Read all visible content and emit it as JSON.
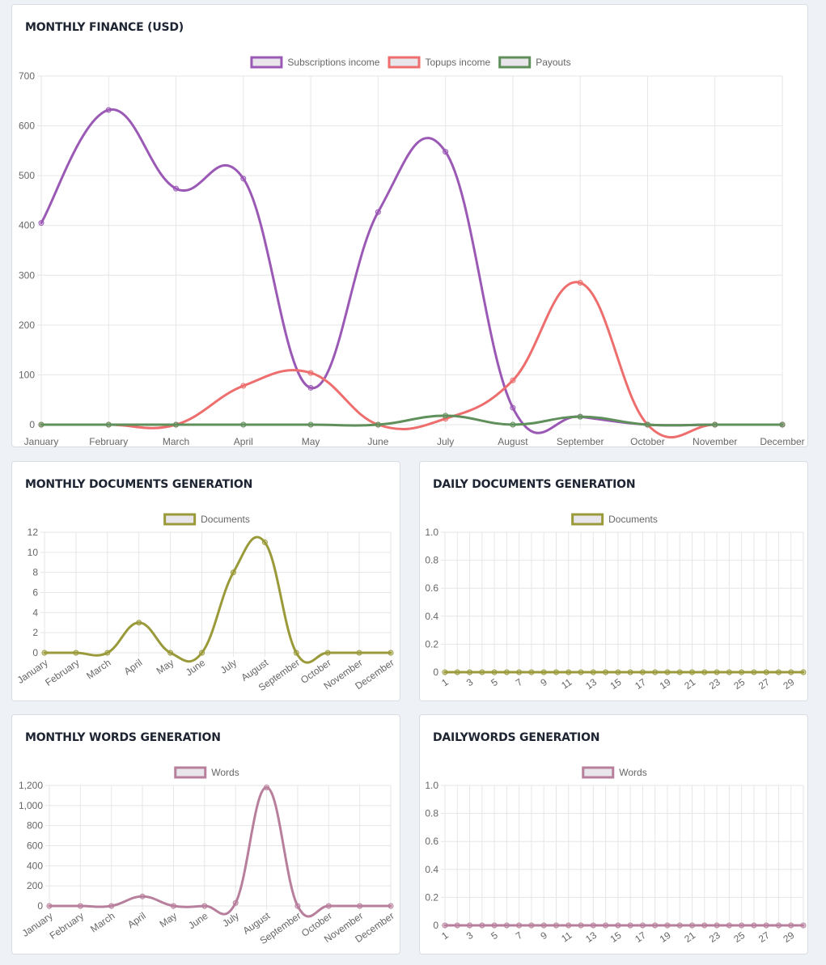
{
  "cards": [
    {
      "title": "MONTHLY FINANCE (USD)",
      "chart_data": {
        "type": "line",
        "categories": [
          "January",
          "February",
          "March",
          "April",
          "May",
          "June",
          "July",
          "August",
          "September",
          "October",
          "November",
          "December"
        ],
        "series": [
          {
            "name": "Subscriptions income",
            "color": "#9b59b6",
            "values": [
              405,
              632,
              474,
              494,
              74,
              427,
              548,
              34,
              16,
              0,
              0,
              0
            ]
          },
          {
            "name": "Topups income",
            "color": "#ee6e6e",
            "values": [
              0,
              0,
              0,
              78,
              104,
              0,
              12,
              89,
              285,
              0,
              0,
              0
            ]
          },
          {
            "name": "Payouts",
            "color": "#5f8f5a",
            "values": [
              0,
              0,
              0,
              0,
              0,
              0,
              18,
              0,
              16,
              0,
              0,
              0
            ]
          }
        ],
        "ylim": [
          0,
          700
        ],
        "yticks": [
          "0",
          "100",
          "200",
          "300",
          "400",
          "500",
          "600",
          "700"
        ],
        "grid": true,
        "legend": "top"
      }
    },
    {
      "title": "MONTHLY DOCUMENTS GENERATION",
      "chart_data": {
        "type": "line",
        "categories": [
          "January",
          "February",
          "March",
          "April",
          "May",
          "June",
          "July",
          "August",
          "September",
          "October",
          "November",
          "December"
        ],
        "series": [
          {
            "name": "Documents",
            "color": "#9a9a3a",
            "values": [
              0,
              0,
              0,
              3,
              0,
              0,
              8,
              11,
              0,
              0,
              0,
              0
            ]
          }
        ],
        "ylim": [
          0,
          12
        ],
        "yticks": [
          "0",
          "2",
          "4",
          "6",
          "8",
          "10",
          "12"
        ],
        "grid": true,
        "legend": "top"
      }
    },
    {
      "title": "DAILY DOCUMENTS GENERATION",
      "chart_data": {
        "type": "line",
        "categories": [
          "1",
          "2",
          "3",
          "4",
          "5",
          "6",
          "7",
          "8",
          "9",
          "10",
          "11",
          "12",
          "13",
          "14",
          "15",
          "16",
          "17",
          "18",
          "19",
          "20",
          "21",
          "22",
          "23",
          "24",
          "25",
          "26",
          "27",
          "28",
          "29",
          "30"
        ],
        "tick_labels": [
          "1",
          "",
          "3",
          "",
          "5",
          "",
          "7",
          "",
          "9",
          "",
          "11",
          "",
          "13",
          "",
          "15",
          "",
          "17",
          "",
          "19",
          "",
          "21",
          "",
          "23",
          "",
          "25",
          "",
          "27",
          "",
          "29",
          ""
        ],
        "series": [
          {
            "name": "Documents",
            "color": "#9a9a3a",
            "values": [
              0,
              0,
              0,
              0,
              0,
              0,
              0,
              0,
              0,
              0,
              0,
              0,
              0,
              0,
              0,
              0,
              0,
              0,
              0,
              0,
              0,
              0,
              0,
              0,
              0,
              0,
              0,
              0,
              0,
              0
            ]
          }
        ],
        "ylim": [
          0,
          1
        ],
        "yticks": [
          "0",
          "0.2",
          "0.4",
          "0.6",
          "0.8",
          "1.0"
        ],
        "grid": true,
        "legend": "top"
      }
    },
    {
      "title": "MONTHLY WORDS GENERATION",
      "chart_data": {
        "type": "line",
        "categories": [
          "January",
          "February",
          "March",
          "April",
          "May",
          "June",
          "July",
          "August",
          "September",
          "October",
          "November",
          "December"
        ],
        "series": [
          {
            "name": "Words",
            "color": "#b77f9b",
            "values": [
              0,
              0,
              0,
              95,
              0,
              0,
              30,
              1180,
              0,
              0,
              0,
              0
            ]
          }
        ],
        "ylim": [
          0,
          1200
        ],
        "yticks": [
          "0",
          "200",
          "400",
          "600",
          "800",
          "1,000",
          "1,200"
        ],
        "grid": true,
        "legend": "top"
      }
    },
    {
      "title": "DAILYWORDS GENERATION",
      "chart_data": {
        "type": "line",
        "categories": [
          "1",
          "2",
          "3",
          "4",
          "5",
          "6",
          "7",
          "8",
          "9",
          "10",
          "11",
          "12",
          "13",
          "14",
          "15",
          "16",
          "17",
          "18",
          "19",
          "20",
          "21",
          "22",
          "23",
          "24",
          "25",
          "26",
          "27",
          "28",
          "29",
          "30"
        ],
        "tick_labels": [
          "1",
          "",
          "3",
          "",
          "5",
          "",
          "7",
          "",
          "9",
          "",
          "11",
          "",
          "13",
          "",
          "15",
          "",
          "17",
          "",
          "19",
          "",
          "21",
          "",
          "23",
          "",
          "25",
          "",
          "27",
          "",
          "29",
          ""
        ],
        "series": [
          {
            "name": "Words",
            "color": "#b77f9b",
            "values": [
              0,
              0,
              0,
              0,
              0,
              0,
              0,
              0,
              0,
              0,
              0,
              0,
              0,
              0,
              0,
              0,
              0,
              0,
              0,
              0,
              0,
              0,
              0,
              0,
              0,
              0,
              0,
              0,
              0,
              0
            ]
          }
        ],
        "ylim": [
          0,
          1
        ],
        "yticks": [
          "0",
          "0.2",
          "0.4",
          "0.6",
          "0.8",
          "1.0"
        ],
        "grid": true,
        "legend": "top"
      }
    }
  ]
}
